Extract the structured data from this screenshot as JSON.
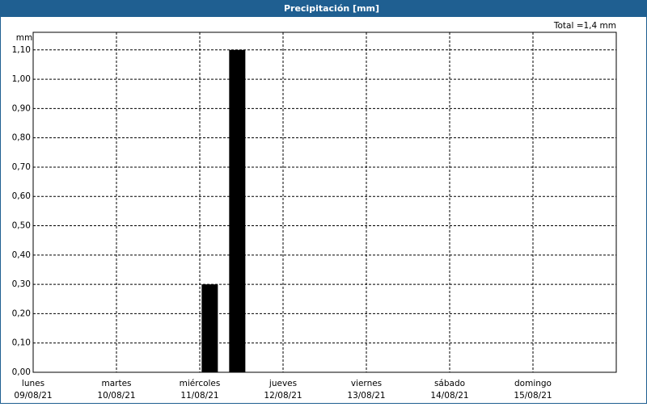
{
  "chart_data": {
    "type": "bar",
    "title": "Precipitación [mm]",
    "y_unit": "mm",
    "annotation": "Total =1,4 mm",
    "x": [
      2.12,
      2.45
    ],
    "values": [
      0.3,
      1.1
    ],
    "color": "#000000",
    "xlim": [
      0,
      7
    ],
    "xticks": [
      {
        "value": 0,
        "label": "lunes"
      },
      {
        "value": 1,
        "label": "martes"
      },
      {
        "value": 2,
        "label": "miércoles"
      },
      {
        "value": 3,
        "label": "jueves"
      },
      {
        "value": 4,
        "label": "viernes"
      },
      {
        "value": 5,
        "label": "sábado"
      },
      {
        "value": 6,
        "label": "domingo"
      }
    ],
    "xtick_dates": [
      "09/08/21",
      "10/08/21",
      "11/08/21",
      "12/08/21",
      "13/08/21",
      "14/08/21",
      "15/08/21"
    ],
    "ylim": [
      0,
      1.16
    ],
    "yticks": [
      {
        "value": 0,
        "label": "0,00"
      },
      {
        "value": 0.1,
        "label": "0,10"
      },
      {
        "value": 0.2,
        "label": "0,20"
      },
      {
        "value": 0.3,
        "label": "0,30"
      },
      {
        "value": 0.4,
        "label": "0,40"
      },
      {
        "value": 0.5,
        "label": "0,50"
      },
      {
        "value": 0.6,
        "label": "0,60"
      },
      {
        "value": 0.7,
        "label": "0,70"
      },
      {
        "value": 0.8,
        "label": "0,80"
      },
      {
        "value": 0.9,
        "label": "0,90"
      },
      {
        "value": 1.0,
        "label": "1,00"
      },
      {
        "value": 1.1,
        "label": "1,10"
      }
    ],
    "grid": true
  }
}
